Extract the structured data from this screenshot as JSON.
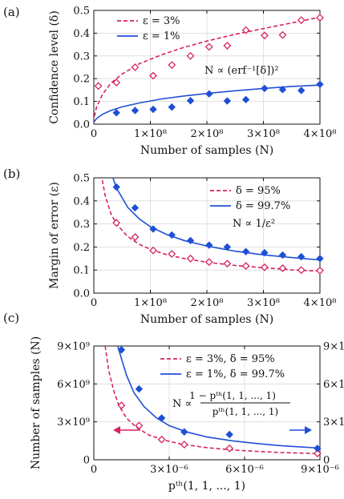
{
  "colors": {
    "pink": "#d6245e",
    "blue": "#1f4fd6",
    "axis": "#111111",
    "grid": "#d9d9d9"
  },
  "chart_data": [
    {
      "type": "scatter",
      "panel_label": "(a)",
      "xlabel": "Number of samples (N)",
      "ylabel": "Confidence level (δ)",
      "xlim": [
        0,
        400000000
      ],
      "ylim": [
        0,
        0.5
      ],
      "xticks": [
        0,
        100000000,
        200000000,
        300000000,
        400000000
      ],
      "xtick_labels": [
        "0",
        "1×10⁸",
        "2×10⁸",
        "3×10⁸",
        "4×10⁸"
      ],
      "yticks": [
        0,
        0.1,
        0.2,
        0.3,
        0.4,
        0.5
      ],
      "ytick_labels": [
        "0.0",
        "0.1",
        "0.2",
        "0.3",
        "0.4",
        "0.5"
      ],
      "grid": true,
      "legend_position": "top-left",
      "annotation": "N ∝ (erf⁻¹[δ])²",
      "series": [
        {
          "name": "ε = 3%",
          "color": "#d6245e",
          "line": "dashed",
          "marker": "open-diamond",
          "x": [
            8000000,
            40000000,
            73000000,
            105000000,
            138000000,
            171000000,
            204000000,
            236000000,
            269000000,
            302000000,
            334000000,
            367000000,
            400000000
          ],
          "y": [
            0.168,
            0.183,
            0.25,
            0.213,
            0.26,
            0.3,
            0.34,
            0.345,
            0.413,
            0.39,
            0.392,
            0.457,
            0.468
          ],
          "curve_x": [
            1000000,
            5000000,
            15000000,
            30000000,
            50000000,
            80000000,
            120000000,
            160000000,
            200000000,
            250000000,
            300000000,
            350000000,
            400000000
          ],
          "curve_y": [
            0.034,
            0.076,
            0.13,
            0.18,
            0.22,
            0.265,
            0.305,
            0.338,
            0.365,
            0.395,
            0.42,
            0.445,
            0.47
          ]
        },
        {
          "name": "ε = 1%",
          "color": "#1f4fd6",
          "line": "solid",
          "marker": "filled-diamond",
          "x": [
            40000000,
            73000000,
            105000000,
            138000000,
            171000000,
            204000000,
            236000000,
            269000000,
            302000000,
            334000000,
            367000000,
            400000000
          ],
          "y": [
            0.05,
            0.06,
            0.065,
            0.075,
            0.103,
            0.133,
            0.102,
            0.108,
            0.157,
            0.152,
            0.148,
            0.175
          ],
          "curve_x": [
            1000000,
            5000000,
            15000000,
            30000000,
            50000000,
            80000000,
            120000000,
            160000000,
            200000000,
            250000000,
            300000000,
            350000000,
            400000000
          ],
          "curve_y": [
            0.012,
            0.025,
            0.043,
            0.06,
            0.076,
            0.093,
            0.111,
            0.124,
            0.135,
            0.147,
            0.157,
            0.166,
            0.172
          ]
        }
      ]
    },
    {
      "type": "scatter",
      "panel_label": "(b)",
      "xlabel": "Number of samples (N)",
      "ylabel": "Margin of error (ε)",
      "xlim": [
        0,
        400000000
      ],
      "ylim": [
        0,
        0.5
      ],
      "xticks": [
        0,
        100000000,
        200000000,
        300000000,
        400000000
      ],
      "xtick_labels": [
        "0",
        "1×10⁸",
        "2×10⁸",
        "3×10⁸",
        "4×10⁸"
      ],
      "yticks": [
        0,
        0.1,
        0.2,
        0.3,
        0.4,
        0.5
      ],
      "ytick_labels": [
        "0.0",
        "0.1",
        "0.2",
        "0.3",
        "0.4",
        "0.5"
      ],
      "grid": true,
      "legend_position": "top-right",
      "annotation": "N ∝ 1/ε²",
      "series": [
        {
          "name": "δ = 95%",
          "color": "#d6245e",
          "line": "dashed",
          "marker": "open-diamond",
          "x": [
            40000000,
            73000000,
            105000000,
            138000000,
            171000000,
            204000000,
            236000000,
            269000000,
            302000000,
            334000000,
            367000000,
            400000000
          ],
          "y": [
            0.305,
            0.243,
            0.185,
            0.17,
            0.15,
            0.135,
            0.128,
            0.118,
            0.112,
            0.108,
            0.1,
            0.098
          ],
          "curve_x": [
            10000000,
            15000000,
            20000000,
            30000000,
            40000000,
            60000000,
            80000000,
            100000000,
            130000000,
            160000000,
            200000000,
            250000000,
            300000000,
            350000000,
            400000000
          ],
          "curve_y": [
            0.6,
            0.49,
            0.424,
            0.346,
            0.3,
            0.245,
            0.212,
            0.19,
            0.166,
            0.15,
            0.134,
            0.12,
            0.11,
            0.101,
            0.095
          ]
        },
        {
          "name": "δ = 99.7%",
          "color": "#1f4fd6",
          "line": "solid",
          "marker": "filled-diamond",
          "x": [
            40000000,
            73000000,
            105000000,
            138000000,
            171000000,
            204000000,
            236000000,
            269000000,
            302000000,
            334000000,
            367000000,
            400000000
          ],
          "y": [
            0.46,
            0.37,
            0.278,
            0.252,
            0.228,
            0.208,
            0.2,
            0.18,
            0.175,
            0.165,
            0.158,
            0.15
          ],
          "curve_x": [
            20000000,
            30000000,
            40000000,
            60000000,
            80000000,
            100000000,
            130000000,
            160000000,
            200000000,
            250000000,
            300000000,
            350000000,
            400000000
          ],
          "curve_y": [
            0.645,
            0.527,
            0.456,
            0.372,
            0.323,
            0.288,
            0.253,
            0.228,
            0.204,
            0.182,
            0.166,
            0.154,
            0.144
          ]
        }
      ]
    },
    {
      "type": "scatter",
      "panel_label": "(c)",
      "xlabel": "pᵗʰ(1, 1, ..., 1)",
      "ylabel": "Number of samples (N)",
      "xlim": [
        0,
        9e-06
      ],
      "ylim_left": [
        0,
        9000000000
      ],
      "ylim_right": [
        0,
        90000000000
      ],
      "xticks": [
        0,
        3e-06,
        6e-06,
        9e-06
      ],
      "xtick_labels": [
        "0",
        "3×10⁻⁶",
        "6×10⁻⁶",
        "9×10⁻⁶"
      ],
      "yticks_left": [
        0,
        3000000000,
        6000000000,
        9000000000
      ],
      "ytick_labels_left": [
        "0",
        "3×10⁹",
        "6×10⁹",
        "9×10⁹"
      ],
      "yticks_right": [
        0,
        30000000000,
        60000000000,
        90000000000
      ],
      "ytick_labels_right": [
        "0",
        "3×10¹⁰",
        "6×10¹⁰",
        "9×10¹⁰"
      ],
      "grid": true,
      "legend_position": "top-right",
      "annotation_lhs": "N ∝",
      "annotation_num": "1 − pᵗʰ(1, 1, ..., 1)",
      "annotation_den": "pᵗʰ(1, 1, ..., 1)",
      "series": [
        {
          "name": "ε = 3%,  δ = 95%",
          "color": "#d6245e",
          "line": "dashed",
          "marker": "open-diamond",
          "axis": "left",
          "x": [
            1.1e-06,
            1.8e-06,
            2.7e-06,
            3.6e-06,
            5.4e-06,
            8.9e-06
          ],
          "y": [
            4300000000,
            2700000000,
            1600000000,
            1200000000,
            900000000,
            500000000
          ],
          "curve_x": [
            4.5e-07,
            6e-07,
            8e-07,
            1e-06,
            1.3e-06,
            1.7e-06,
            2.2e-06,
            2.8e-06,
            3.5e-06,
            4.5e-06,
            5.5e-06,
            6.5e-06,
            7.5e-06,
            8.9e-06
          ],
          "curve_y": [
            9000000000,
            7000000000,
            5400000000,
            4300000000,
            3300000000,
            2550000000,
            1950000000,
            1550000000,
            1230000000,
            960000000,
            780000000,
            660000000,
            570000000,
            490000000
          ]
        },
        {
          "name": "ε = 1%,  δ = 99.7%",
          "color": "#1f4fd6",
          "line": "solid",
          "marker": "filled-diamond",
          "axis": "right",
          "x": [
            1.1e-06,
            1.8e-06,
            2.7e-06,
            3.6e-06,
            5.4e-06,
            8.9e-06
          ],
          "y": [
            87000000000,
            56000000000,
            33000000000,
            22000000000,
            20000000000,
            9000000000
          ],
          "curve_x": [
            9.5e-07,
            1.1e-06,
            1.3e-06,
            1.6e-06,
            2e-06,
            2.5e-06,
            3e-06,
            3.7e-06,
            4.5e-06,
            5.5e-06,
            6.5e-06,
            7.5e-06,
            8.9e-06
          ],
          "curve_y": [
            90000000000,
            80000000000,
            67000000000,
            53000000000,
            42000000000,
            33000000000,
            27000000000,
            22000000000,
            18000000000,
            15000000000,
            12800000000,
            11000000000,
            9300000000
          ]
        }
      ]
    }
  ]
}
